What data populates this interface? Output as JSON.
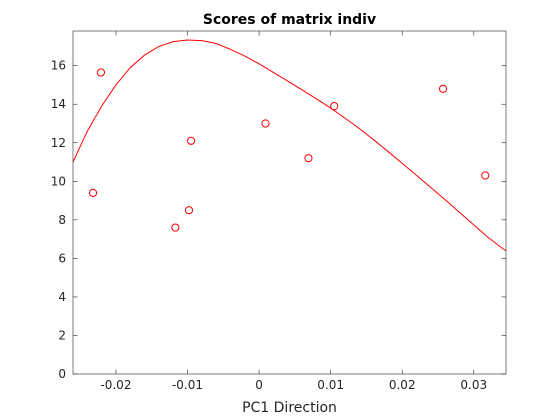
{
  "chart_data": {
    "type": "scatter",
    "title": "Scores of matrix indiv",
    "xlabel": "PC1 Direction",
    "ylabel": "",
    "xlim": [
      -0.026,
      0.0345
    ],
    "ylim": [
      0,
      17.8
    ],
    "x_ticks": [
      -0.02,
      -0.01,
      0,
      0.01,
      0.02,
      0.03
    ],
    "x_tick_labels": [
      "-0.02",
      "-0.01",
      "0",
      "0.01",
      "0.02",
      "0.03"
    ],
    "y_ticks": [
      0,
      2,
      4,
      6,
      8,
      10,
      12,
      14,
      16
    ],
    "y_tick_labels": [
      "0",
      "2",
      "4",
      "6",
      "8",
      "10",
      "12",
      "14",
      "16"
    ],
    "grid": false,
    "color": "#ff0000",
    "points": {
      "x": [
        -0.0232,
        -0.0221,
        -0.0117,
        -0.0098,
        -0.0095,
        0.0009,
        0.0069,
        0.0105,
        0.0257,
        0.0316
      ],
      "y": [
        9.4,
        15.65,
        7.6,
        8.5,
        12.1,
        13.0,
        11.2,
        13.9,
        14.8,
        10.3
      ]
    },
    "curve": {
      "x": [
        -0.026,
        -0.024,
        -0.022,
        -0.02,
        -0.018,
        -0.016,
        -0.014,
        -0.012,
        -0.01,
        -0.008,
        -0.006,
        -0.004,
        -0.002,
        0.0,
        0.002,
        0.004,
        0.006,
        0.008,
        0.01,
        0.012,
        0.014,
        0.016,
        0.018,
        0.02,
        0.022,
        0.024,
        0.026,
        0.028,
        0.03,
        0.032,
        0.034,
        0.0345
      ],
      "y": [
        11.0,
        12.6,
        13.9,
        15.0,
        15.9,
        16.55,
        17.0,
        17.25,
        17.33,
        17.3,
        17.15,
        16.85,
        16.5,
        16.1,
        15.65,
        15.2,
        14.75,
        14.28,
        13.8,
        13.28,
        12.74,
        12.16,
        11.55,
        10.93,
        10.31,
        9.68,
        9.04,
        8.39,
        7.74,
        7.09,
        6.52,
        6.4
      ]
    }
  }
}
